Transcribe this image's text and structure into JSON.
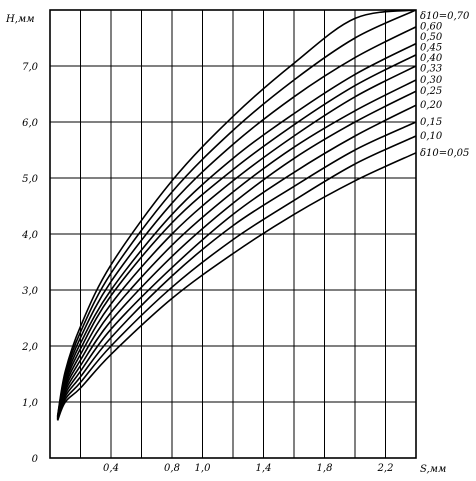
{
  "chart_data": {
    "type": "line",
    "title": "",
    "xlabel": "S,мм",
    "ylabel": "Н,мм",
    "xlim": [
      0,
      2.4
    ],
    "ylim": [
      0,
      8.0
    ],
    "grid": true,
    "x_ticks": [
      0.4,
      0.8,
      1.0,
      1.4,
      1.8,
      2.2
    ],
    "x_tick_labels": [
      "0,4",
      "0,8",
      "1,0",
      "1,4",
      "1,8",
      "2,2"
    ],
    "y_ticks": [
      0,
      1,
      2,
      3,
      4,
      5,
      6,
      7
    ],
    "y_tick_labels": [
      "0",
      "1,0",
      "2,0",
      "3,0",
      "4,0",
      "5,0",
      "6,0",
      "7,0"
    ],
    "x": [
      0.05,
      0.1,
      0.2,
      0.4,
      0.8,
      1.2,
      1.6,
      2.0,
      2.4
    ],
    "series": [
      {
        "name": "δ10=0,70",
        "values": [
          0.75,
          1.55,
          2.35,
          3.45,
          4.95,
          6.1,
          7.05,
          7.85,
          8.0
        ]
      },
      {
        "name": "0,60",
        "values": [
          0.74,
          1.5,
          2.25,
          3.3,
          4.75,
          5.85,
          6.75,
          7.5,
          8.0
        ]
      },
      {
        "name": "0,50",
        "values": [
          0.73,
          1.45,
          2.15,
          3.15,
          4.55,
          5.6,
          6.45,
          7.15,
          7.7
        ]
      },
      {
        "name": "0,45",
        "values": [
          0.72,
          1.4,
          2.05,
          3.0,
          4.35,
          5.35,
          6.15,
          6.85,
          7.4
        ]
      },
      {
        "name": "0,40",
        "values": [
          0.71,
          1.35,
          1.95,
          2.9,
          4.2,
          5.15,
          5.95,
          6.65,
          7.2
        ]
      },
      {
        "name": "0,33",
        "values": [
          0.7,
          1.3,
          1.85,
          2.75,
          4.0,
          4.95,
          5.75,
          6.45,
          7.0
        ]
      },
      {
        "name": "0,30",
        "values": [
          0.7,
          1.25,
          1.75,
          2.6,
          3.8,
          4.75,
          5.55,
          6.2,
          6.75
        ]
      },
      {
        "name": "0,25",
        "values": [
          0.69,
          1.2,
          1.65,
          2.45,
          3.6,
          4.55,
          5.35,
          6.0,
          6.55
        ]
      },
      {
        "name": "0,20",
        "values": [
          0.69,
          1.15,
          1.55,
          2.3,
          3.4,
          4.35,
          5.1,
          5.75,
          6.3
        ]
      },
      {
        "name": "0,15",
        "values": [
          0.68,
          1.1,
          1.45,
          2.15,
          3.25,
          4.15,
          4.85,
          5.5,
          6.0
        ]
      },
      {
        "name": "0,10",
        "values": [
          0.68,
          1.05,
          1.35,
          2.0,
          3.05,
          3.9,
          4.6,
          5.25,
          5.75
        ]
      },
      {
        "name": "δ10=0,05",
        "values": [
          0.67,
          1.0,
          1.25,
          1.85,
          2.85,
          3.65,
          4.35,
          4.95,
          5.45
        ]
      }
    ]
  }
}
